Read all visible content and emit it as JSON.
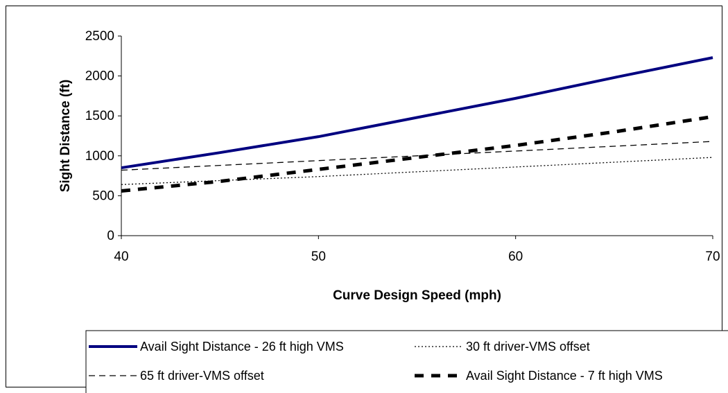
{
  "chart_data": {
    "type": "line",
    "xlabel": "Curve Design Speed (mph)",
    "ylabel": "Sight Distance (ft)",
    "xlim": [
      40,
      70
    ],
    "ylim": [
      0,
      2500
    ],
    "xticks": [
      "40",
      "50",
      "60",
      "70"
    ],
    "yticks": [
      "0",
      "500",
      "1000",
      "1500",
      "2000",
      "2500"
    ],
    "grid": false,
    "legend_position": "bottom",
    "series": [
      {
        "name": "Avail Sight Distance - 26 ft high VMS",
        "color": "#000080",
        "style": "solid-thick",
        "x": [
          40,
          45,
          50,
          55,
          60,
          65,
          70
        ],
        "y": [
          850,
          1040,
          1240,
          1480,
          1720,
          1980,
          2230
        ]
      },
      {
        "name": "30 ft driver-VMS offset",
        "color": "#000000",
        "style": "dotted",
        "x": [
          40,
          45,
          50,
          55,
          60,
          65,
          70
        ],
        "y": [
          640,
          690,
          740,
          800,
          860,
          920,
          980
        ]
      },
      {
        "name": "65 ft driver-VMS offset",
        "color": "#000000",
        "style": "dashed",
        "x": [
          40,
          45,
          50,
          55,
          60,
          65,
          70
        ],
        "y": [
          820,
          880,
          940,
          1000,
          1060,
          1120,
          1180
        ]
      },
      {
        "name": "Avail Sight Distance - 7 ft high VMS",
        "color": "#000000",
        "style": "dashed-thick",
        "x": [
          40,
          45,
          50,
          55,
          60,
          65,
          70
        ],
        "y": [
          560,
          680,
          830,
          980,
          1130,
          1300,
          1490
        ]
      }
    ]
  }
}
